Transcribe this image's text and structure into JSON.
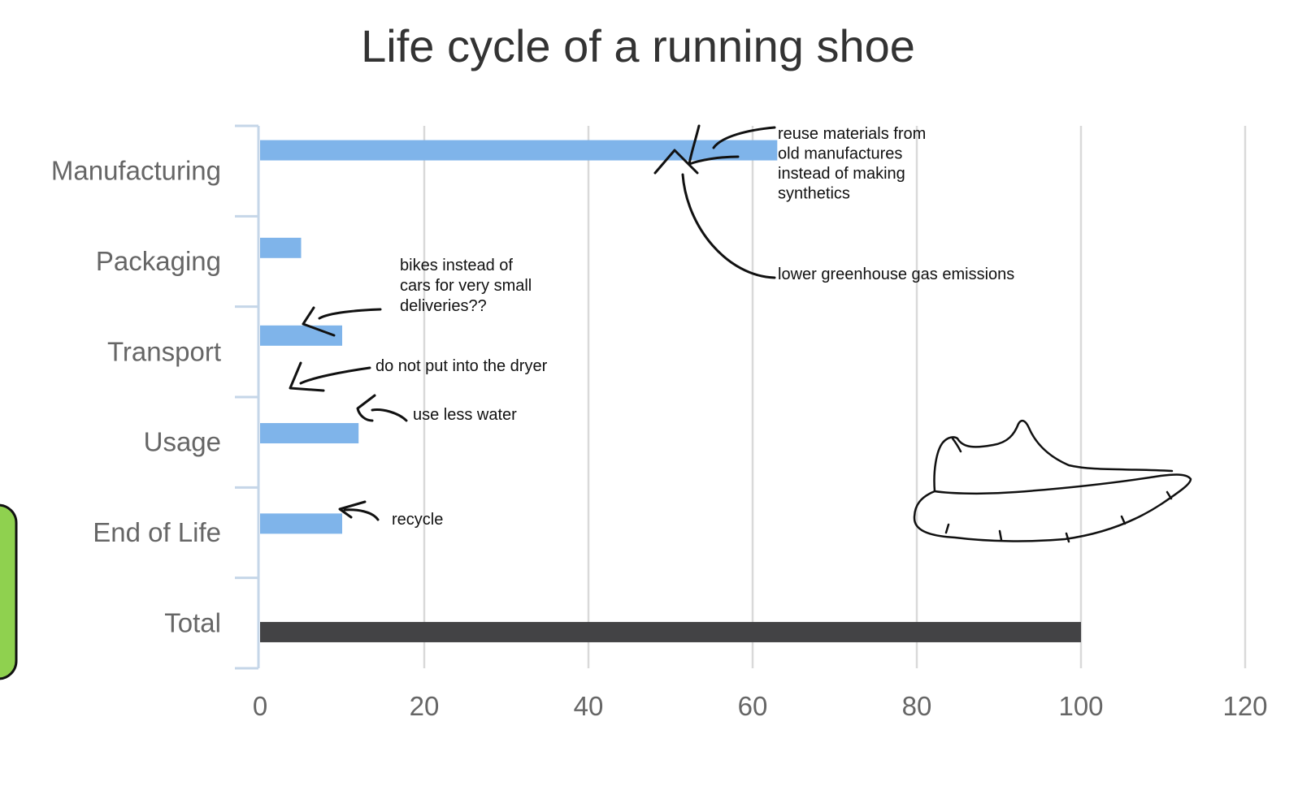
{
  "chart_data": {
    "type": "bar",
    "orientation": "horizontal",
    "title": "Life cycle of a running shoe",
    "categories": [
      "Manufacturing",
      "Packaging",
      "Transport",
      "Usage",
      "End of Life",
      "Total"
    ],
    "values": [
      63,
      5,
      10,
      12,
      10,
      100
    ],
    "bar_colors": [
      "#7fb4ea",
      "#7fb4ea",
      "#7fb4ea",
      "#7fb4ea",
      "#7fb4ea",
      "#434345"
    ],
    "xlim": [
      0,
      120
    ],
    "xticks": [
      0,
      20,
      40,
      60,
      80,
      100,
      120
    ],
    "grid": "vertical",
    "xlabel": "",
    "ylabel": "",
    "annotations": [
      {
        "category": "Manufacturing",
        "lines": [
          "reuse materials from",
          "old manufactures",
          "instead of making",
          "synthetics"
        ]
      },
      {
        "category": "Manufacturing",
        "lines": [
          "lower greenhouse gas emissions"
        ]
      },
      {
        "category": "Transport",
        "lines": [
          "bikes instead of",
          "cars for very small",
          "deliveries??"
        ]
      },
      {
        "category": "Usage",
        "lines": [
          "do not put into the dryer"
        ]
      },
      {
        "category": "Usage",
        "lines": [
          "use less water"
        ]
      },
      {
        "category": "End of Life",
        "lines": [
          "recycle"
        ]
      }
    ]
  },
  "colors": {
    "axis": "#c5d6e8",
    "grid": "#d9d9d9",
    "accent_panel": "#8fd14f"
  },
  "decorations": [
    "running-shoe-sketch",
    "green-sticky-note"
  ]
}
